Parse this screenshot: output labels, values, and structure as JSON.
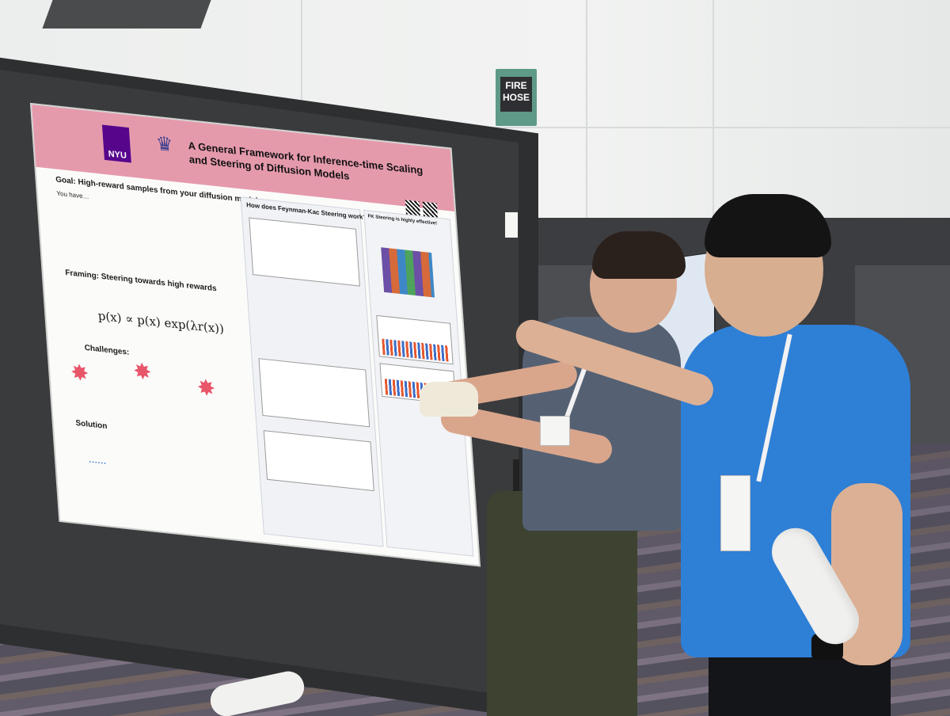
{
  "sign": {
    "line1": "FIRE",
    "line2": "HOSE"
  },
  "poster": {
    "logo_nyu": "NYU",
    "title": "A General Framework for Inference-time Scaling and Steering of Diffusion Models",
    "goal": "Goal: High-reward samples from your diffusion model",
    "you_have": "You have…",
    "framing": "Framing: Steering towards high rewards",
    "challenges": "Challenges:",
    "solution": "Solution",
    "mid_heading": "How does Feynman-Kac Steering work?",
    "right_heading": "FK Steering is highly effective!"
  },
  "colors": {
    "poster_header": "#e59aac",
    "nyu_purple": "#57068c",
    "shirt_blue": "#2e7fd6",
    "sign_green": "#5e9a87"
  }
}
